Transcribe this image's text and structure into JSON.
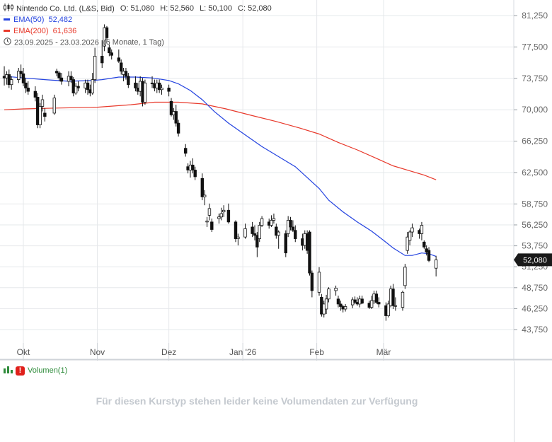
{
  "header": {
    "instrument": "Nintendo Co. Ltd. (L&S, Bid)",
    "ohlc": {
      "o_label": "O:",
      "o": "51,080",
      "h_label": "H:",
      "h": "52,560",
      "l_label": "L:",
      "l": "50,100",
      "c_label": "C:",
      "c": "52,080"
    },
    "ema50_label": "EMA(50)",
    "ema50_value": "52,482",
    "ema200_label": "EMA(200)",
    "ema200_value": "61,636",
    "range_text": "23.09.2025 - 23.03.2026",
    "interval_text": "(6 Monate, 1 Tag)"
  },
  "colors": {
    "ema50": "#2443e0",
    "ema200": "#e8392b",
    "candle": "#111111",
    "grid": "#e6e8eb",
    "price_badge": "#1a1a1a"
  },
  "current_price_label": "52,080",
  "volume_panel": {
    "label": "Volumen(1)",
    "message": "Für diesen Kurstyp stehen leider keine Volumendaten zur Verfügung"
  },
  "chart_data": {
    "type": "candlestick",
    "y_ticks": [
      81.25,
      77.5,
      73.75,
      70.0,
      66.25,
      62.5,
      58.75,
      56.25,
      53.75,
      51.25,
      48.75,
      46.25,
      43.75
    ],
    "y_tick_labels": [
      "81,250",
      "77,500",
      "73,750",
      "70,000",
      "66,250",
      "62,500",
      "58,750",
      "56,250",
      "53,750",
      "51,250",
      "48,750",
      "46,250",
      "43,750"
    ],
    "ylim": [
      42.4,
      82.5
    ],
    "x_ticks": [
      {
        "label": "Okt",
        "date": "2025-10-01"
      },
      {
        "label": "Nov",
        "date": "2025-11-01"
      },
      {
        "label": "Dez",
        "date": "2025-12-01"
      },
      {
        "label": "Jan '26",
        "date": "2026-01-01"
      },
      {
        "label": "Feb",
        "date": "2026-02-01"
      },
      {
        "label": "Mär",
        "date": "2026-03-01"
      }
    ],
    "xlim": [
      "2025-09-23",
      "2026-04-03"
    ],
    "candles": [
      [
        "2025-09-23",
        74.0,
        75.2,
        72.9,
        73.8
      ],
      [
        "2025-09-24",
        73.8,
        74.6,
        73.0,
        74.2
      ],
      [
        "2025-09-25",
        74.2,
        74.8,
        72.6,
        73.0
      ],
      [
        "2025-09-26",
        73.0,
        74.0,
        72.4,
        73.6
      ],
      [
        "2025-09-29",
        73.6,
        75.0,
        73.2,
        74.6
      ],
      [
        "2025-09-30",
        74.6,
        75.4,
        73.8,
        74.3
      ],
      [
        "2025-10-01",
        74.3,
        75.0,
        72.8,
        73.2
      ],
      [
        "2025-10-02",
        73.2,
        73.8,
        72.0,
        72.6
      ],
      [
        "2025-10-03",
        72.6,
        73.4,
        71.8,
        72.2
      ],
      [
        "2025-10-06",
        72.2,
        72.8,
        71.0,
        71.5
      ],
      [
        "2025-10-07",
        71.5,
        72.0,
        67.8,
        68.2
      ],
      [
        "2025-10-08",
        68.2,
        70.8,
        67.8,
        70.4
      ],
      [
        "2025-10-09",
        70.4,
        71.8,
        69.8,
        71.2
      ],
      [
        "2025-10-10",
        69.6,
        70.2,
        68.6,
        69.2
      ],
      [
        "2025-10-14",
        69.6,
        71.8,
        69.4,
        71.4
      ],
      [
        "2025-10-15",
        74.6,
        74.9,
        74.0,
        74.4
      ],
      [
        "2025-10-16",
        74.4,
        74.6,
        73.4,
        73.8
      ],
      [
        "2025-10-17",
        73.8,
        74.4,
        73.0,
        73.4
      ],
      [
        "2025-10-20",
        73.4,
        74.6,
        72.8,
        74.0
      ],
      [
        "2025-10-21",
        74.0,
        74.6,
        73.2,
        73.6
      ],
      [
        "2025-10-22",
        73.6,
        73.9,
        71.6,
        72.0
      ],
      [
        "2025-10-23",
        72.0,
        73.2,
        71.8,
        72.8
      ],
      [
        "2025-10-24",
        72.8,
        73.4,
        72.2,
        72.6
      ],
      [
        "2025-10-27",
        72.6,
        73.6,
        72.0,
        73.2
      ],
      [
        "2025-10-28",
        73.2,
        73.6,
        71.8,
        72.4
      ],
      [
        "2025-10-29",
        72.4,
        73.0,
        71.6,
        72.0
      ],
      [
        "2025-10-30",
        72.0,
        74.4,
        71.8,
        73.6
      ],
      [
        "2025-10-31",
        73.6,
        77.4,
        73.2,
        76.4
      ],
      [
        "2025-11-03",
        76.4,
        78.3,
        75.0,
        75.6
      ],
      [
        "2025-11-04",
        77.6,
        80.2,
        77.0,
        79.8
      ],
      [
        "2025-11-05",
        79.8,
        80.0,
        78.2,
        78.6
      ],
      [
        "2025-11-06",
        77.4,
        77.8,
        76.4,
        76.8
      ],
      [
        "2025-11-07",
        76.8,
        77.2,
        76.0,
        76.5
      ],
      [
        "2025-11-10",
        76.2,
        77.2,
        75.6,
        75.8
      ],
      [
        "2025-11-11",
        75.6,
        76.0,
        74.2,
        74.6
      ],
      [
        "2025-11-12",
        74.2,
        75.0,
        73.4,
        74.6
      ],
      [
        "2025-11-13",
        74.6,
        75.0,
        73.6,
        74.0
      ],
      [
        "2025-11-14",
        74.0,
        74.4,
        72.6,
        73.0
      ],
      [
        "2025-11-17",
        73.2,
        74.0,
        72.2,
        72.6
      ],
      [
        "2025-11-18",
        72.6,
        73.2,
        71.8,
        72.2
      ],
      [
        "2025-11-19",
        72.2,
        74.0,
        71.6,
        73.4
      ],
      [
        "2025-11-20",
        73.4,
        73.8,
        70.4,
        70.9
      ],
      [
        "2025-11-21",
        70.9,
        73.6,
        70.6,
        73.2
      ],
      [
        "2025-11-24",
        73.2,
        74.0,
        72.6,
        73.1
      ],
      [
        "2025-11-25",
        73.1,
        73.6,
        72.2,
        72.6
      ],
      [
        "2025-11-26",
        72.6,
        73.6,
        72.0,
        73.2
      ],
      [
        "2025-11-27",
        73.2,
        73.6,
        72.0,
        72.4
      ],
      [
        "2025-11-28",
        72.4,
        73.0,
        71.8,
        72.6
      ],
      [
        "2025-12-01",
        72.6,
        73.0,
        71.6,
        72.2
      ],
      [
        "2025-12-02",
        71.0,
        71.4,
        69.2,
        69.4
      ],
      [
        "2025-12-03",
        69.4,
        70.2,
        68.8,
        69.8
      ],
      [
        "2025-12-04",
        69.8,
        70.6,
        68.0,
        68.4
      ],
      [
        "2025-12-05",
        68.4,
        68.8,
        66.8,
        67.2
      ],
      [
        "2025-12-08",
        65.4,
        65.9,
        64.4,
        64.8
      ],
      [
        "2025-12-09",
        63.2,
        63.6,
        62.4,
        62.8
      ],
      [
        "2025-12-10",
        62.8,
        63.9,
        61.9,
        63.4
      ],
      [
        "2025-12-11",
        63.4,
        64.2,
        62.4,
        62.8
      ],
      [
        "2025-12-12",
        62.8,
        63.2,
        61.6,
        62.0
      ],
      [
        "2025-12-15",
        61.8,
        62.4,
        59.2,
        59.6
      ],
      [
        "2025-12-16",
        59.6,
        60.4,
        58.6,
        59.8
      ],
      [
        "2025-12-17",
        56.6,
        57.2,
        56.0,
        56.7
      ],
      [
        "2025-12-18",
        57.4,
        58.8,
        56.8,
        58.2
      ],
      [
        "2025-12-19",
        56.6,
        57.0,
        55.4,
        55.7
      ],
      [
        "2025-12-22",
        57.0,
        57.6,
        56.4,
        57.2
      ],
      [
        "2025-12-23",
        57.2,
        58.3,
        56.8,
        57.6
      ],
      [
        "2025-12-24",
        57.8,
        58.6,
        57.2,
        58.0
      ],
      [
        "2025-12-26",
        58.0,
        58.8,
        56.4,
        56.6
      ],
      [
        "2025-12-29",
        56.6,
        56.8,
        54.2,
        54.6
      ],
      [
        "2025-12-30",
        54.6,
        55.2,
        53.8,
        54.8
      ],
      [
        "2026-01-02",
        54.8,
        56.4,
        54.6,
        55.8
      ],
      [
        "2026-01-05",
        56.0,
        56.6,
        54.8,
        55.2
      ],
      [
        "2026-01-06",
        55.2,
        56.2,
        54.4,
        55.0
      ],
      [
        "2026-01-07",
        55.0,
        55.4,
        52.4,
        53.6
      ],
      [
        "2026-01-08",
        54.6,
        56.6,
        54.2,
        56.2
      ],
      [
        "2026-01-09",
        56.2,
        57.3,
        56.0,
        57.0
      ],
      [
        "2026-01-12",
        56.6,
        57.0,
        55.8,
        56.2
      ],
      [
        "2026-01-13",
        56.2,
        57.4,
        56.0,
        56.8
      ],
      [
        "2026-01-14",
        56.8,
        57.6,
        56.4,
        57.0
      ],
      [
        "2026-01-15",
        56.0,
        56.4,
        54.6,
        55.0
      ],
      [
        "2026-01-16",
        55.0,
        55.6,
        53.4,
        55.4
      ],
      [
        "2026-01-19",
        55.2,
        55.6,
        52.4,
        52.9
      ],
      [
        "2026-01-20",
        55.2,
        57.3,
        54.8,
        56.8
      ],
      [
        "2026-01-21",
        56.8,
        57.2,
        55.6,
        56.0
      ],
      [
        "2026-01-22",
        56.0,
        56.8,
        55.4,
        55.6
      ],
      [
        "2026-01-23",
        55.6,
        56.2,
        54.2,
        54.6
      ],
      [
        "2026-01-26",
        54.6,
        55.2,
        53.2,
        53.8
      ],
      [
        "2026-01-27",
        53.8,
        55.6,
        53.4,
        55.2
      ],
      [
        "2026-01-28",
        55.2,
        55.6,
        52.8,
        53.2
      ],
      [
        "2026-01-29",
        55.4,
        55.6,
        50.2,
        50.5
      ],
      [
        "2026-01-30",
        50.5,
        50.8,
        47.6,
        48.4
      ],
      [
        "2026-02-02",
        48.2,
        51.2,
        47.8,
        50.6
      ],
      [
        "2026-02-03",
        47.6,
        48.0,
        45.3,
        45.6
      ],
      [
        "2026-02-04",
        45.6,
        47.2,
        45.2,
        46.8
      ],
      [
        "2026-02-05",
        46.2,
        47.9,
        45.6,
        47.4
      ],
      [
        "2026-02-06",
        47.4,
        48.8,
        47.0,
        48.6
      ],
      [
        "2026-02-09",
        48.4,
        49.0,
        47.8,
        48.7
      ],
      [
        "2026-02-10",
        47.4,
        47.8,
        46.4,
        46.8
      ],
      [
        "2026-02-11",
        46.8,
        47.2,
        46.0,
        46.5
      ],
      [
        "2026-02-12",
        46.5,
        46.7,
        45.8,
        46.2
      ],
      [
        "2026-02-13",
        46.2,
        46.8,
        45.9,
        46.5
      ],
      [
        "2026-02-16",
        46.7,
        47.6,
        46.3,
        47.3
      ],
      [
        "2026-02-17",
        47.3,
        47.7,
        46.8,
        47.0
      ],
      [
        "2026-02-18",
        47.0,
        47.6,
        46.6,
        46.8
      ],
      [
        "2026-02-19",
        46.8,
        47.8,
        46.4,
        47.4
      ],
      [
        "2026-02-20",
        47.4,
        47.8,
        46.8,
        46.9
      ],
      [
        "2026-02-23",
        46.9,
        47.2,
        46.2,
        46.4
      ],
      [
        "2026-02-24",
        46.4,
        47.8,
        46.2,
        47.2
      ],
      [
        "2026-02-25",
        47.2,
        48.4,
        46.8,
        48.0
      ],
      [
        "2026-02-26",
        48.0,
        48.4,
        46.8,
        47.0
      ],
      [
        "2026-02-27",
        47.0,
        47.6,
        46.4,
        46.8
      ],
      [
        "2026-03-02",
        46.6,
        47.0,
        44.8,
        45.4
      ],
      [
        "2026-03-03",
        45.4,
        47.2,
        45.2,
        46.8
      ],
      [
        "2026-03-04",
        46.6,
        49.0,
        46.4,
        48.6
      ],
      [
        "2026-03-05",
        48.6,
        49.2,
        46.2,
        46.6
      ],
      [
        "2026-03-06",
        46.6,
        47.6,
        46.0,
        46.6
      ],
      [
        "2026-03-09",
        46.4,
        48.4,
        46.0,
        48.2
      ],
      [
        "2026-03-10",
        49.0,
        51.6,
        48.6,
        51.2
      ],
      [
        "2026-03-11",
        53.2,
        55.4,
        52.8,
        54.8
      ],
      [
        "2026-03-12",
        54.4,
        55.6,
        53.8,
        55.4
      ],
      [
        "2026-03-13",
        55.4,
        56.4,
        54.8,
        55.9
      ],
      [
        "2026-03-16",
        55.6,
        55.8,
        54.6,
        55.2
      ],
      [
        "2026-03-17",
        55.2,
        56.6,
        54.4,
        56.2
      ],
      [
        "2026-03-18",
        54.2,
        54.4,
        53.4,
        53.6
      ],
      [
        "2026-03-19",
        53.4,
        53.8,
        52.6,
        53.0
      ],
      [
        "2026-03-20",
        53.2,
        53.6,
        51.8,
        52.0
      ],
      [
        "2026-03-23",
        51.08,
        52.56,
        50.1,
        52.08
      ]
    ],
    "ema50": [
      [
        "2025-09-23",
        74.0
      ],
      [
        "2025-10-01",
        73.8
      ],
      [
        "2025-10-10",
        73.6
      ],
      [
        "2025-10-20",
        73.4
      ],
      [
        "2025-10-30",
        73.5
      ],
      [
        "2025-11-03",
        73.6
      ],
      [
        "2025-11-10",
        73.9
      ],
      [
        "2025-11-17",
        73.9
      ],
      [
        "2025-11-24",
        73.8
      ],
      [
        "2025-12-01",
        73.5
      ],
      [
        "2025-12-05",
        73.1
      ],
      [
        "2025-12-10",
        72.3
      ],
      [
        "2025-12-15",
        71.2
      ],
      [
        "2025-12-20",
        69.8
      ],
      [
        "2025-12-26",
        68.4
      ],
      [
        "2026-01-02",
        67.0
      ],
      [
        "2026-01-09",
        65.6
      ],
      [
        "2026-01-16",
        64.4
      ],
      [
        "2026-01-23",
        63.2
      ],
      [
        "2026-01-28",
        61.9
      ],
      [
        "2026-02-02",
        60.6
      ],
      [
        "2026-02-06",
        59.2
      ],
      [
        "2026-02-12",
        57.8
      ],
      [
        "2026-02-18",
        56.6
      ],
      [
        "2026-02-24",
        55.5
      ],
      [
        "2026-03-01",
        54.4
      ],
      [
        "2026-03-05",
        53.5
      ],
      [
        "2026-03-10",
        52.6
      ],
      [
        "2026-03-13",
        52.6
      ],
      [
        "2026-03-17",
        52.9
      ],
      [
        "2026-03-20",
        52.8
      ],
      [
        "2026-03-23",
        52.48
      ]
    ],
    "ema200": [
      [
        "2025-09-23",
        70.0
      ],
      [
        "2025-10-01",
        70.1
      ],
      [
        "2025-10-15",
        70.2
      ],
      [
        "2025-11-01",
        70.3
      ],
      [
        "2025-11-15",
        70.6
      ],
      [
        "2025-11-25",
        70.9
      ],
      [
        "2025-12-05",
        70.9
      ],
      [
        "2025-12-15",
        70.7
      ],
      [
        "2025-12-25",
        70.1
      ],
      [
        "2026-01-05",
        69.3
      ],
      [
        "2026-01-15",
        68.6
      ],
      [
        "2026-01-25",
        67.8
      ],
      [
        "2026-02-02",
        67.1
      ],
      [
        "2026-02-10",
        66.1
      ],
      [
        "2026-02-18",
        65.2
      ],
      [
        "2026-02-26",
        64.2
      ],
      [
        "2026-03-05",
        63.3
      ],
      [
        "2026-03-12",
        62.7
      ],
      [
        "2026-03-18",
        62.2
      ],
      [
        "2026-03-23",
        61.64
      ]
    ],
    "legend": [
      "EMA(50)",
      "EMA(200)"
    ],
    "grid": true
  }
}
